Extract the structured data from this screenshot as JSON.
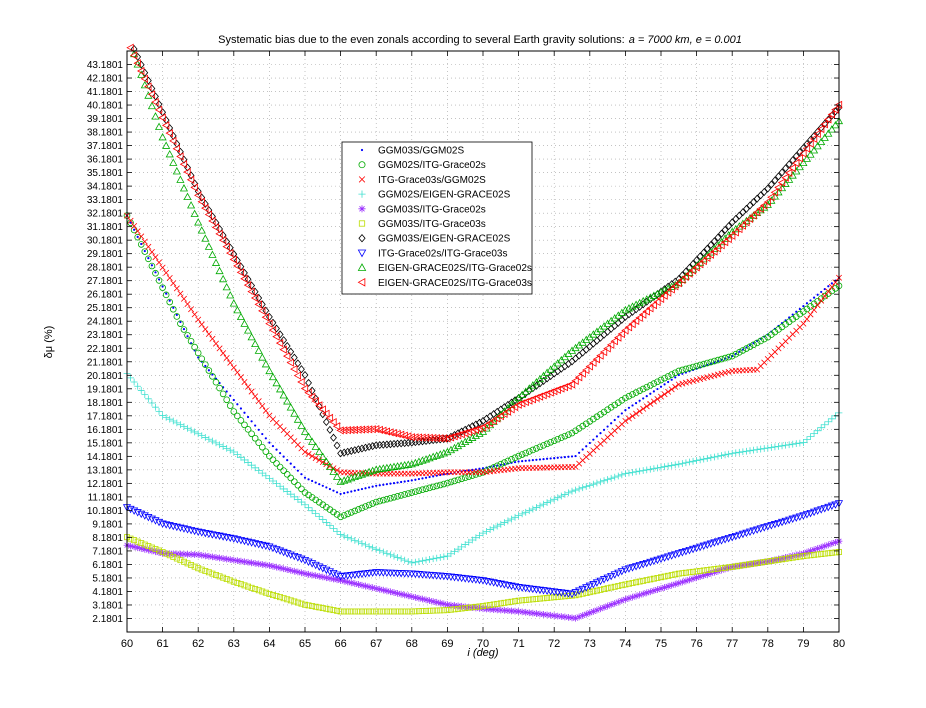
{
  "chart_data": {
    "type": "line",
    "title_prefix": "Systematic bias due to the even zonals according to several Earth gravity solutions:",
    "title_params": "a = 7000  km,  e = 0.001",
    "xlabel": "i (deg)",
    "ylabel": "δμ (%)",
    "xlim": [
      60,
      80
    ],
    "ylim": [
      1.1801,
      44.1801
    ],
    "x_ticks": [
      60,
      61,
      62,
      63,
      64,
      65,
      66,
      67,
      68,
      69,
      70,
      71,
      72,
      73,
      74,
      75,
      76,
      77,
      78,
      79,
      80
    ],
    "y_ticks": [
      2.1801,
      3.1801,
      4.1801,
      5.1801,
      6.1801,
      7.1801,
      8.1801,
      9.1801,
      10.1801,
      11.1801,
      12.1801,
      13.1801,
      14.1801,
      15.1801,
      16.1801,
      17.1801,
      18.1801,
      19.1801,
      20.1801,
      21.1801,
      22.1801,
      23.1801,
      24.1801,
      25.1801,
      26.1801,
      27.1801,
      28.1801,
      29.1801,
      30.1801,
      31.1801,
      32.1801,
      33.1801,
      34.1801,
      35.1801,
      36.1801,
      37.1801,
      38.1801,
      39.1801,
      40.1801,
      41.1801,
      42.1801,
      43.1801
    ],
    "y_tick_labels": [
      "2.1801",
      "3.1801",
      "4.1801",
      "5.1801",
      "6.1801",
      "7.1801",
      "8.1801",
      "9.1801",
      "10.1801",
      "11.1801",
      "12.1801",
      "13.1801",
      "14.1801",
      "15.1801",
      "16.1801",
      "17.1801",
      "18.1801",
      "19.1801",
      "20.1801",
      "21.1801",
      "22.1801",
      "23.1801",
      "24.1801",
      "25.1801",
      "26.1801",
      "27.1801",
      "28.1801",
      "29.1801",
      "30.1801",
      "31.1801",
      "32.1801",
      "33.1801",
      "34.1801",
      "35.1801",
      "36.1801",
      "37.1801",
      "38.1801",
      "39.1801",
      "40.1801",
      "41.1801",
      "42.1801",
      "43.1801"
    ],
    "grid": true,
    "legend_position": "upper-center",
    "series": [
      {
        "name": "GGM03S/GGM02S",
        "marker": "dot",
        "color": "#0000ff",
        "knots": [
          [
            60,
            32.0
          ],
          [
            62,
            21.5
          ],
          [
            64,
            15.2
          ],
          [
            65,
            12.6
          ],
          [
            66,
            11.4
          ],
          [
            67,
            12.0
          ],
          [
            68,
            12.4
          ],
          [
            69,
            12.9
          ],
          [
            70,
            13.3
          ],
          [
            71,
            13.8
          ],
          [
            72.6,
            14.2
          ],
          [
            74,
            17.6
          ],
          [
            75.5,
            20.2
          ],
          [
            77,
            21.6
          ],
          [
            78,
            23.2
          ],
          [
            80,
            27.4
          ]
        ]
      },
      {
        "name": "GGM02S/ITG-Grace02s",
        "marker": "circle",
        "color": "#00aa00",
        "knots": [
          [
            60,
            32.0
          ],
          [
            61.5,
            24.0
          ],
          [
            63,
            17.5
          ],
          [
            64,
            14.2
          ],
          [
            65,
            11.5
          ],
          [
            66,
            9.7
          ],
          [
            67,
            10.8
          ],
          [
            68,
            11.5
          ],
          [
            69,
            12.2
          ],
          [
            70,
            13.0
          ],
          [
            71,
            14.2
          ],
          [
            72.5,
            15.9
          ],
          [
            74,
            18.5
          ],
          [
            75.5,
            20.5
          ],
          [
            77,
            21.6
          ],
          [
            78,
            23.0
          ],
          [
            80,
            26.8
          ]
        ]
      },
      {
        "name": "ITG-Grace03s/GGM02S",
        "marker": "x",
        "color": "#ff0000",
        "knots": [
          [
            60,
            32.0
          ],
          [
            62,
            24.3
          ],
          [
            64,
            17.2
          ],
          [
            65,
            14.5
          ],
          [
            66,
            13.0
          ],
          [
            67,
            12.9
          ],
          [
            68,
            12.9
          ],
          [
            69,
            13.0
          ],
          [
            70,
            13.0
          ],
          [
            71,
            13.3
          ],
          [
            72.6,
            13.4
          ],
          [
            74,
            16.8
          ],
          [
            75.5,
            19.5
          ],
          [
            77,
            20.5
          ],
          [
            77.7,
            20.6
          ],
          [
            79,
            24.0
          ],
          [
            80,
            27.4
          ]
        ]
      },
      {
        "name": "GGM02S/EIGEN-GRACE02S",
        "marker": "plus",
        "color": "#40e0d0",
        "knots": [
          [
            60,
            20.3
          ],
          [
            61,
            17.2
          ],
          [
            63,
            14.5
          ],
          [
            65,
            10.6
          ],
          [
            66,
            8.4
          ],
          [
            67,
            7.3
          ],
          [
            68,
            6.3
          ],
          [
            69,
            6.8
          ],
          [
            70,
            8.5
          ],
          [
            71,
            9.8
          ],
          [
            72.5,
            11.6
          ],
          [
            74,
            12.9
          ],
          [
            75.5,
            13.6
          ],
          [
            77,
            14.4
          ],
          [
            79,
            15.2
          ],
          [
            80,
            17.4
          ]
        ]
      },
      {
        "name": "GGM03S/ITG-Grace02s",
        "marker": "star",
        "color": "#9b30ff",
        "knots": [
          [
            60,
            7.6
          ],
          [
            61,
            7.0
          ],
          [
            62,
            6.9
          ],
          [
            63,
            6.5
          ],
          [
            64,
            6.1
          ],
          [
            65,
            5.5
          ],
          [
            66,
            5.0
          ],
          [
            67,
            4.4
          ],
          [
            68,
            3.8
          ],
          [
            69,
            3.2
          ],
          [
            70,
            2.9
          ],
          [
            71,
            2.7
          ],
          [
            72.6,
            2.2
          ],
          [
            74,
            3.6
          ],
          [
            75.5,
            4.8
          ],
          [
            77,
            6.0
          ],
          [
            78,
            6.4
          ],
          [
            79,
            7.0
          ],
          [
            80,
            7.9
          ]
        ]
      },
      {
        "name": "GGM03S/ITG-Grace03s",
        "marker": "square",
        "color": "#bbdd00",
        "knots": [
          [
            60,
            8.2
          ],
          [
            61,
            7.1
          ],
          [
            62,
            5.9
          ],
          [
            63,
            4.9
          ],
          [
            64,
            4.0
          ],
          [
            65,
            3.2
          ],
          [
            66,
            2.7
          ],
          [
            67,
            2.7
          ],
          [
            68,
            2.7
          ],
          [
            69,
            2.8
          ],
          [
            70,
            3.1
          ],
          [
            71,
            3.5
          ],
          [
            72.6,
            3.9
          ],
          [
            74,
            4.7
          ],
          [
            75.5,
            5.5
          ],
          [
            77,
            6.0
          ],
          [
            78,
            6.4
          ],
          [
            79,
            6.8
          ],
          [
            80,
            7.1
          ]
        ]
      },
      {
        "name": "GGM03S/EIGEN-GRACE02S",
        "marker": "diamond",
        "color": "#000000",
        "knots": [
          [
            60,
            45.5
          ],
          [
            62,
            33.8
          ],
          [
            64,
            24.5
          ],
          [
            65,
            20.2
          ],
          [
            66,
            14.4
          ],
          [
            67,
            15.0
          ],
          [
            68,
            15.2
          ],
          [
            69,
            15.5
          ],
          [
            70,
            16.8
          ],
          [
            71,
            18.5
          ],
          [
            72.5,
            21.2
          ],
          [
            74,
            24.5
          ],
          [
            75.5,
            27.3
          ],
          [
            77,
            31.5
          ],
          [
            78,
            34.0
          ],
          [
            80,
            40.0
          ]
        ]
      },
      {
        "name": "ITG-Grace02s/ITG-Grace03s",
        "marker": "triangle-down",
        "color": "#0000ff",
        "knots": [
          [
            60,
            10.4
          ],
          [
            61,
            9.2
          ],
          [
            62,
            8.6
          ],
          [
            63,
            8.1
          ],
          [
            64,
            7.5
          ],
          [
            65,
            6.5
          ],
          [
            66,
            5.3
          ],
          [
            67,
            5.6
          ],
          [
            68,
            5.5
          ],
          [
            69,
            5.3
          ],
          [
            70,
            5.0
          ],
          [
            71,
            4.5
          ],
          [
            72.5,
            4.0
          ],
          [
            74,
            5.8
          ],
          [
            75.5,
            7.0
          ],
          [
            77,
            8.2
          ],
          [
            78,
            9.0
          ],
          [
            79,
            9.8
          ],
          [
            80,
            10.7
          ]
        ]
      },
      {
        "name": "EIGEN-GRACE02S/ITG-Grace02s",
        "marker": "triangle-up",
        "color": "#00aa00",
        "knots": [
          [
            60,
            45.5
          ],
          [
            61,
            37.8
          ],
          [
            62,
            31.5
          ],
          [
            63,
            25.5
          ],
          [
            64,
            20.5
          ],
          [
            65,
            16.0
          ],
          [
            66,
            12.3
          ],
          [
            67,
            13.2
          ],
          [
            68,
            13.6
          ],
          [
            69,
            14.5
          ],
          [
            70,
            16.0
          ],
          [
            71,
            18.5
          ],
          [
            72.5,
            22.0
          ],
          [
            74,
            25.0
          ],
          [
            75.5,
            27.0
          ],
          [
            77,
            30.8
          ],
          [
            78,
            32.8
          ],
          [
            80,
            39.0
          ]
        ]
      },
      {
        "name": "EIGEN-GRACE02S/ITG-Grace03s",
        "marker": "triangle-left",
        "color": "#ff0000",
        "knots": [
          [
            60,
            45.0
          ],
          [
            62,
            33.5
          ],
          [
            64,
            24.0
          ],
          [
            65,
            19.2
          ],
          [
            66,
            16.1
          ],
          [
            67,
            16.2
          ],
          [
            68,
            15.6
          ],
          [
            69,
            15.5
          ],
          [
            70,
            16.3
          ],
          [
            71,
            18.0
          ],
          [
            72.5,
            19.5
          ],
          [
            74,
            23.5
          ],
          [
            75.5,
            27.0
          ],
          [
            77,
            30.5
          ],
          [
            78,
            33.0
          ],
          [
            80,
            40.2
          ]
        ]
      }
    ]
  }
}
